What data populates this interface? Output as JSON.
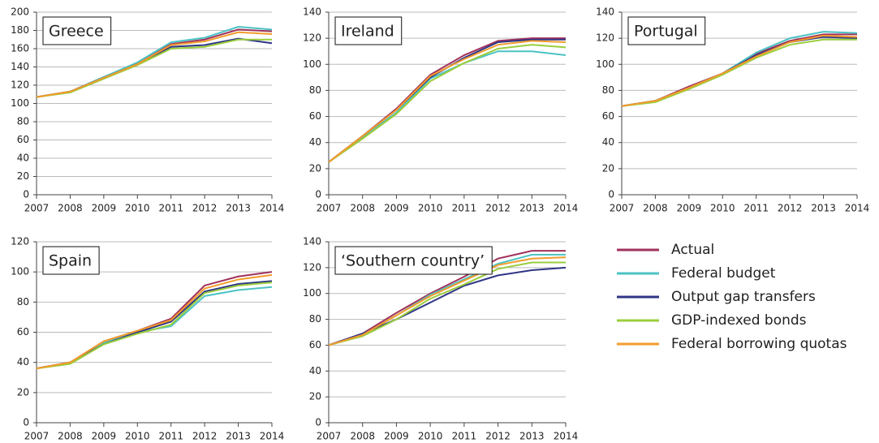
{
  "chart_data": [
    {
      "type": "line",
      "title": "Greece",
      "categories": [
        "2007",
        "2008",
        "2009",
        "2010",
        "2011",
        "2012",
        "2013",
        "2014"
      ],
      "ylim": [
        0,
        200
      ],
      "yticks": [
        0,
        20,
        40,
        60,
        80,
        100,
        120,
        140,
        160,
        180,
        200
      ],
      "grid": true,
      "series": [
        {
          "name": "Actual",
          "color": "#a0325c",
          "values": [
            107,
            113,
            129,
            144,
            165,
            170,
            181,
            179
          ]
        },
        {
          "name": "Federal budget",
          "color": "#4cc2c4",
          "values": [
            107,
            113,
            129,
            145,
            167,
            172,
            184,
            181
          ]
        },
        {
          "name": "Output gap transfers",
          "color": "#2e3586",
          "values": [
            107,
            113,
            128,
            143,
            162,
            164,
            171,
            166
          ]
        },
        {
          "name": "GDP-indexed bonds",
          "color": "#9acd3c",
          "values": [
            107,
            112,
            127,
            142,
            160,
            162,
            170,
            170
          ]
        },
        {
          "name": "Federal borrowing quotas",
          "color": "#f39c2b",
          "values": [
            107,
            113,
            128,
            143,
            164,
            168,
            178,
            176
          ]
        }
      ]
    },
    {
      "type": "line",
      "title": "Ireland",
      "categories": [
        "2007",
        "2008",
        "2009",
        "2010",
        "2011",
        "2012",
        "2013",
        "2014"
      ],
      "ylim": [
        0,
        140
      ],
      "yticks": [
        0,
        20,
        40,
        60,
        80,
        100,
        120,
        140
      ],
      "grid": true,
      "series": [
        {
          "name": "Actual",
          "color": "#a0325c",
          "values": [
            25,
            45,
            66,
            92,
            107,
            118,
            120,
            120
          ]
        },
        {
          "name": "Federal budget",
          "color": "#4cc2c4",
          "values": [
            25,
            44,
            63,
            89,
            101,
            110,
            110,
            107
          ]
        },
        {
          "name": "Output gap transfers",
          "color": "#2e3586",
          "values": [
            25,
            45,
            65,
            90,
            105,
            117,
            119,
            119
          ]
        },
        {
          "name": "GDP-indexed bonds",
          "color": "#9acd3c",
          "values": [
            25,
            43,
            62,
            87,
            101,
            112,
            115,
            113
          ]
        },
        {
          "name": "Federal borrowing quotas",
          "color": "#f39c2b",
          "values": [
            25,
            45,
            65,
            91,
            104,
            115,
            118,
            117
          ]
        }
      ]
    },
    {
      "type": "line",
      "title": "Portugal",
      "categories": [
        "2007",
        "2008",
        "2009",
        "2010",
        "2011",
        "2012",
        "2013",
        "2014"
      ],
      "ylim": [
        0,
        140
      ],
      "yticks": [
        0,
        20,
        40,
        60,
        80,
        100,
        120,
        140
      ],
      "grid": true,
      "series": [
        {
          "name": "Actual",
          "color": "#a0325c",
          "values": [
            68,
            72,
            83,
            93,
            108,
            118,
            123,
            123
          ]
        },
        {
          "name": "Federal budget",
          "color": "#4cc2c4",
          "values": [
            68,
            72,
            82,
            93,
            109,
            120,
            125,
            124
          ]
        },
        {
          "name": "Output gap transfers",
          "color": "#2e3586",
          "values": [
            68,
            72,
            82,
            93,
            107,
            117,
            121,
            120
          ]
        },
        {
          "name": "GDP-indexed bonds",
          "color": "#9acd3c",
          "values": [
            68,
            71,
            81,
            92,
            105,
            115,
            119,
            119
          ]
        },
        {
          "name": "Federal borrowing quotas",
          "color": "#f39c2b",
          "values": [
            68,
            72,
            82,
            93,
            106,
            117,
            122,
            121
          ]
        }
      ]
    },
    {
      "type": "line",
      "title": "Spain",
      "categories": [
        "2007",
        "2008",
        "2009",
        "2010",
        "2011",
        "2012",
        "2013",
        "2014"
      ],
      "ylim": [
        0,
        120
      ],
      "yticks": [
        0,
        20,
        40,
        60,
        80,
        100,
        120
      ],
      "grid": true,
      "series": [
        {
          "name": "Actual",
          "color": "#a0325c",
          "values": [
            36,
            40,
            54,
            61,
            69,
            91,
            97,
            100
          ]
        },
        {
          "name": "Federal budget",
          "color": "#4cc2c4",
          "values": [
            36,
            40,
            53,
            60,
            64,
            84,
            88,
            90
          ]
        },
        {
          "name": "Output gap transfers",
          "color": "#2e3586",
          "values": [
            36,
            40,
            52,
            60,
            67,
            87,
            92,
            94
          ]
        },
        {
          "name": "GDP-indexed bonds",
          "color": "#9acd3c",
          "values": [
            36,
            39,
            52,
            59,
            65,
            86,
            91,
            93
          ]
        },
        {
          "name": "Federal borrowing quotas",
          "color": "#f39c2b",
          "values": [
            36,
            40,
            54,
            61,
            68,
            89,
            95,
            98
          ]
        }
      ]
    },
    {
      "type": "line",
      "title": "‘Southern country’",
      "categories": [
        "2007",
        "2008",
        "2009",
        "2010",
        "2011",
        "2012",
        "2013",
        "2014"
      ],
      "ylim": [
        0,
        140
      ],
      "yticks": [
        0,
        20,
        40,
        60,
        80,
        100,
        120,
        140
      ],
      "grid": true,
      "series": [
        {
          "name": "Actual",
          "color": "#a0325c",
          "values": [
            60,
            69,
            85,
            100,
            113,
            127,
            133,
            133
          ]
        },
        {
          "name": "Federal budget",
          "color": "#4cc2c4",
          "values": [
            60,
            68,
            83,
            99,
            111,
            123,
            130,
            130
          ]
        },
        {
          "name": "Output gap transfers",
          "color": "#2e3586",
          "values": [
            60,
            69,
            80,
            93,
            106,
            114,
            118,
            120
          ]
        },
        {
          "name": "GDP-indexed bonds",
          "color": "#9acd3c",
          "values": [
            60,
            67,
            80,
            96,
            107,
            119,
            124,
            124
          ]
        },
        {
          "name": "Federal borrowing quotas",
          "color": "#f39c2b",
          "values": [
            60,
            68,
            83,
            98,
            110,
            122,
            127,
            128
          ]
        }
      ]
    }
  ]
}
